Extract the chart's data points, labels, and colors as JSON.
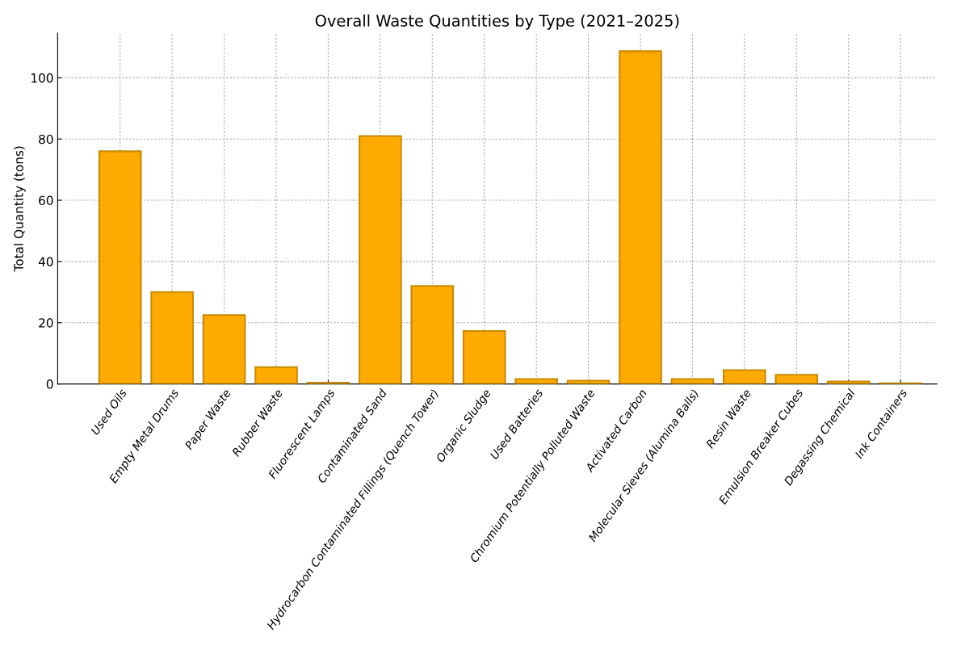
{
  "chart_data": {
    "type": "bar",
    "title": "Overall Waste Quantities by Type (2021–2025)",
    "ylabel": "Total Quantity (tons)",
    "categories": [
      "Used Oils",
      "Empty Metal Drums",
      "Paper Waste",
      "Rubber Waste",
      "Fluorescent Lamps",
      "Contaminated Sand",
      "Hydrocarbon Contaminated Fillings (Quench Tower)",
      "Organic Sludge",
      "Used Batteries",
      "Chromium Potentially Polluted Waste",
      "Activated Carbon",
      "Molecular Sieves (Alumina Balls)",
      "Resin Waste",
      "Emulsion Breaker Cubes",
      "Degassing Chemical",
      "Ink Containers"
    ],
    "values": [
      76,
      30,
      22.5,
      5.5,
      0.4,
      81,
      32,
      17.3,
      1.6,
      1.1,
      108.7,
      1.6,
      4.5,
      3,
      0.8,
      0.2
    ],
    "color": "#ffaa00",
    "ylim": [
      0,
      114.6
    ],
    "yticks": [
      0,
      20,
      40,
      60,
      80,
      100
    ],
    "grid": true
  }
}
